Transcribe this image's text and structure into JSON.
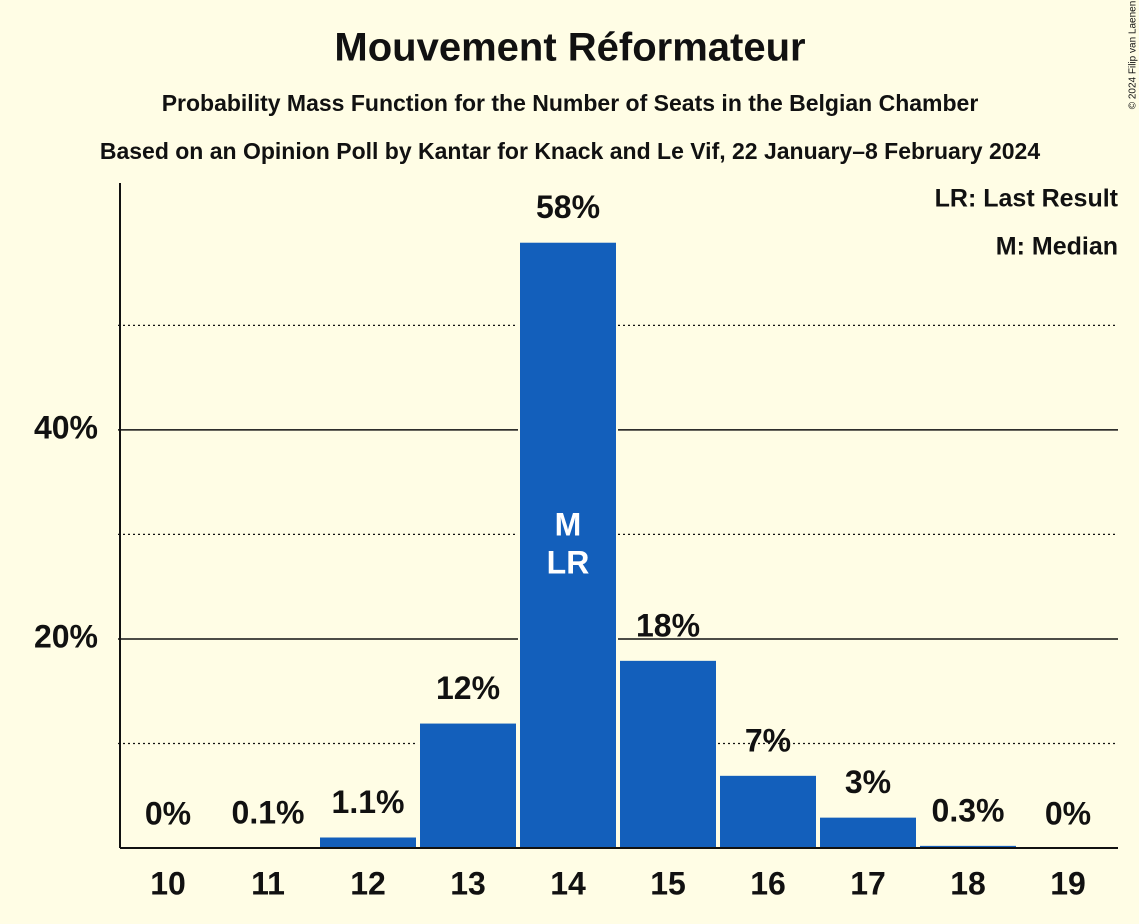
{
  "chart_data": {
    "type": "bar",
    "title": "Mouvement Réformateur",
    "subtitle": "Probability Mass Function for the Number of Seats in the Belgian Chamber",
    "subtitle2": "Based on an Opinion Poll by Kantar for Knack and Le Vif, 22 January–8 February 2024",
    "categories": [
      "10",
      "11",
      "12",
      "13",
      "14",
      "15",
      "16",
      "17",
      "18",
      "19"
    ],
    "values": [
      0,
      0.1,
      1.1,
      12,
      58,
      18,
      7,
      3,
      0.3,
      0
    ],
    "value_labels": [
      "0%",
      "0.1%",
      "1.1%",
      "12%",
      "58%",
      "18%",
      "7%",
      "3%",
      "0.3%",
      "0%"
    ],
    "color": "#135fbb",
    "ylim": [
      0,
      64
    ],
    "yticks": [
      {
        "value": 20,
        "label": "20%"
      },
      {
        "value": 40,
        "label": "40%"
      }
    ],
    "minor_yticks": [
      10,
      30,
      50
    ],
    "grid": true,
    "bar_annotations": [
      {
        "category": "14",
        "labels": [
          "M",
          "LR"
        ]
      }
    ],
    "legend": [
      "LR: Last Result",
      "M: Median"
    ],
    "legend_position": "upper right",
    "copyright": "© 2024 Filip van Laenen"
  }
}
